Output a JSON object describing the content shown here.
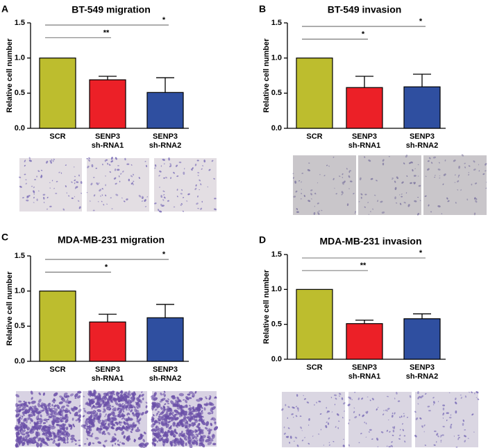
{
  "colors": {
    "scr": "#BDBD2E",
    "sh1": "#EC2027",
    "sh2": "#2F4FA0"
  },
  "chart_data": [
    {
      "panel": "A",
      "type": "bar",
      "title": "BT-549 migration",
      "ylabel": "Relative cell number",
      "ylim": [
        0,
        1.5
      ],
      "yticks": [
        "0.0",
        "0.5",
        "1.0",
        "1.5"
      ],
      "categories": [
        [
          "SCR"
        ],
        [
          "SENP3",
          "sh-RNA1"
        ],
        [
          "SENP3",
          "sh-RNA2"
        ]
      ],
      "values": [
        1.0,
        0.69,
        0.51
      ],
      "errors": [
        0,
        0.05,
        0.21
      ],
      "significance": [
        {
          "from": 0,
          "to": 1,
          "label": "**",
          "level": 1.29
        },
        {
          "from": 0,
          "to": 2,
          "label": "*",
          "level": 1.47
        }
      ],
      "micrographs": {
        "style": "sparse-light"
      }
    },
    {
      "panel": "B",
      "type": "bar",
      "title": "BT-549 invasion",
      "ylabel": "Relative cell number",
      "ylim": [
        0,
        1.5
      ],
      "yticks": [
        "0.0",
        "0.5",
        "1.0",
        "1.5"
      ],
      "categories": [
        [
          "SCR"
        ],
        [
          "SENP3",
          "sh-RNA1"
        ],
        [
          "SENP3",
          "sh-RNA2"
        ]
      ],
      "values": [
        1.0,
        0.58,
        0.59
      ],
      "errors": [
        0,
        0.16,
        0.18
      ],
      "significance": [
        {
          "from": 0,
          "to": 1,
          "label": "*",
          "level": 1.27
        },
        {
          "from": 0,
          "to": 2,
          "label": "*",
          "level": 1.45
        }
      ],
      "micrographs": {
        "style": "sparse-grey"
      }
    },
    {
      "panel": "C",
      "type": "bar",
      "title": "MDA-MB-231 migration",
      "ylabel": "Relative cell number",
      "ylim": [
        0,
        1.5
      ],
      "yticks": [
        "0.0",
        "0.5",
        "1.0",
        "1.5"
      ],
      "categories": [
        [
          "SCR"
        ],
        [
          "SENP3",
          "sh-RNA1"
        ],
        [
          "SENP3",
          "sh-RNA2"
        ]
      ],
      "values": [
        1.0,
        0.56,
        0.62
      ],
      "errors": [
        0,
        0.11,
        0.19
      ],
      "significance": [
        {
          "from": 0,
          "to": 1,
          "label": "*",
          "level": 1.27
        },
        {
          "from": 0,
          "to": 2,
          "label": "*",
          "level": 1.45
        }
      ],
      "micrographs": {
        "style": "dense-purple"
      }
    },
    {
      "panel": "D",
      "type": "bar",
      "title": "MDA-MB-231 invasion",
      "ylabel": "Relative cell number",
      "ylim": [
        0,
        1.5
      ],
      "yticks": [
        "0.0",
        "0.5",
        "1.0",
        "1.5"
      ],
      "categories": [
        [
          "SCR"
        ],
        [
          "SENP3",
          "sh-RNA1"
        ],
        [
          "SENP3",
          "sh-RNA2"
        ]
      ],
      "values": [
        1.0,
        0.51,
        0.58
      ],
      "errors": [
        0,
        0.05,
        0.07
      ],
      "significance": [
        {
          "from": 0,
          "to": 1,
          "label": "**",
          "level": 1.27
        },
        {
          "from": 0,
          "to": 2,
          "label": "*",
          "level": 1.45
        }
      ],
      "micrographs": {
        "style": "sparse-purple"
      }
    }
  ]
}
